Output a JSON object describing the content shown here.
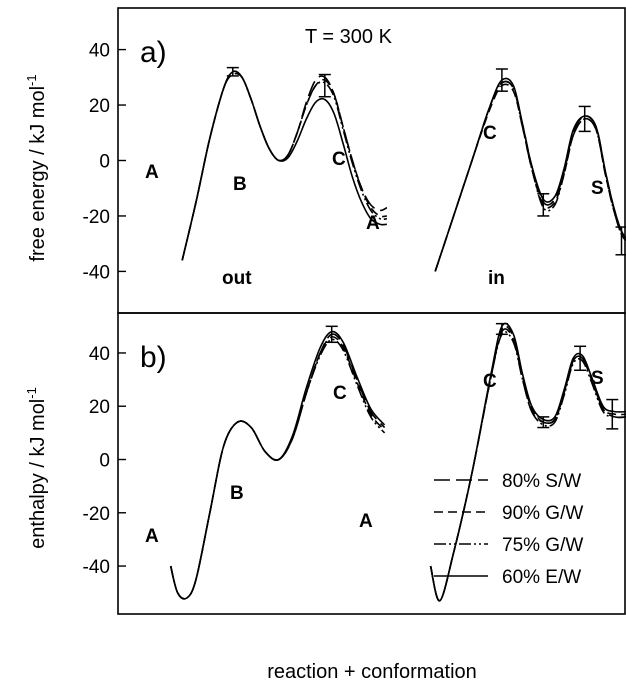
{
  "chart_data": [
    {
      "type": "line",
      "panel_label": "a)",
      "annotation": "T = 300 K",
      "ylabel": "free energy / kJ mol",
      "ylabel_sup": "-1",
      "xlabel": "reaction + conformation",
      "ylim": [
        -55,
        55
      ],
      "yticks": [
        "40",
        "20",
        "0",
        "-20",
        "-40"
      ],
      "ytick_values": [
        40,
        20,
        0,
        -20,
        -40
      ],
      "state_labels": [
        "A",
        "B",
        "C",
        "A",
        "C",
        "S"
      ],
      "group_labels": [
        "out",
        "in"
      ],
      "x_range": [
        0,
        10
      ],
      "segments": [
        {
          "name": "out",
          "series": [
            {
              "name": "80% S/W",
              "x": [
                0.7,
                1.0,
                1.3,
                1.6,
                1.8,
                2.0,
                2.2,
                2.4,
                2.6,
                2.8,
                3.0,
                3.2,
                3.4,
                3.6,
                3.8,
                4.0,
                4.2,
                4.4,
                4.6,
                4.8,
                5.0,
                5.15
              ],
              "values": [
                -36,
                -15,
                8,
                26,
                32,
                30,
                22,
                12,
                4,
                0,
                2,
                10,
                21,
                29,
                30,
                24,
                12,
                0,
                -10,
                -16,
                -18,
                -17
              ]
            },
            {
              "name": "90% G/W",
              "x": [
                0.7,
                1.0,
                1.3,
                1.6,
                1.8,
                2.0,
                2.2,
                2.4,
                2.6,
                2.8,
                3.0,
                3.2,
                3.4,
                3.6,
                3.8,
                4.0,
                4.2,
                4.4,
                4.6,
                4.8,
                5.0,
                5.15
              ],
              "values": [
                -36,
                -15,
                8,
                26,
                31,
                30,
                22,
                12,
                4,
                0,
                2,
                10,
                20,
                27,
                29,
                24,
                12,
                0,
                -10,
                -17,
                -20,
                -20
              ]
            },
            {
              "name": "75% G/W",
              "x": [
                0.7,
                1.0,
                1.3,
                1.6,
                1.8,
                2.0,
                2.2,
                2.4,
                2.6,
                2.8,
                3.0,
                3.2,
                3.4,
                3.6,
                3.8,
                4.0,
                4.2,
                4.4,
                4.6,
                4.8,
                5.0,
                5.15
              ],
              "values": [
                -36,
                -15,
                8,
                26,
                32,
                30,
                22,
                12,
                4,
                0,
                2,
                10,
                20,
                27,
                28,
                23,
                11,
                -1,
                -11,
                -18,
                -21,
                -21
              ]
            },
            {
              "name": "60% E/W",
              "x": [
                0.7,
                1.0,
                1.3,
                1.6,
                1.8,
                2.0,
                2.2,
                2.4,
                2.6,
                2.8,
                3.0,
                3.2,
                3.4,
                3.6,
                3.8,
                4.0,
                4.2,
                4.4,
                4.6,
                4.8,
                5.0,
                5.15
              ],
              "values": [
                -36,
                -15,
                8,
                26,
                32,
                30,
                22,
                12,
                4,
                0,
                1,
                7,
                15,
                21,
                22,
                17,
                6,
                -6,
                -15,
                -21,
                -23,
                -23
              ]
            }
          ]
        },
        {
          "name": "in",
          "series": [
            {
              "name": "80% S/W",
              "x": [
                6.2,
                6.6,
                7.0,
                7.4,
                7.65,
                7.9,
                8.1,
                8.3,
                8.55,
                8.8,
                9.0,
                9.2,
                9.45,
                9.7,
                9.9,
                10.1,
                10.3,
                10.6
              ],
              "values": [
                -40,
                -20,
                0,
                20,
                28,
                26,
                13,
                -2,
                -15,
                -14,
                -4,
                10,
                16,
                12,
                -4,
                -18,
                -27,
                -30
              ]
            },
            {
              "name": "90% G/W",
              "x": [
                6.2,
                6.6,
                7.0,
                7.4,
                7.65,
                7.9,
                8.1,
                8.3,
                8.55,
                8.8,
                9.0,
                9.2,
                9.45,
                9.7,
                9.9,
                10.1,
                10.3,
                10.6
              ],
              "values": [
                -40,
                -20,
                0,
                19,
                27,
                25,
                12,
                -3,
                -16,
                -15,
                -5,
                9,
                15,
                11,
                -5,
                -19,
                -28,
                -30
              ]
            },
            {
              "name": "75% G/W",
              "x": [
                6.2,
                6.6,
                7.0,
                7.4,
                7.65,
                7.9,
                8.1,
                8.3,
                8.55,
                8.8,
                9.0,
                9.2,
                9.45,
                9.7,
                9.9,
                10.1,
                10.3,
                10.6
              ],
              "values": [
                -40,
                -20,
                0,
                20,
                28,
                26,
                12,
                -3,
                -17,
                -16,
                -5,
                9,
                15,
                11,
                -5,
                -19,
                -28,
                -30
              ]
            },
            {
              "name": "60% E/W",
              "x": [
                6.2,
                6.6,
                7.0,
                7.4,
                7.65,
                7.9,
                8.1,
                8.3,
                8.55,
                8.8,
                9.0,
                9.2,
                9.45,
                9.7,
                9.9,
                10.1,
                10.3,
                10.6
              ],
              "values": [
                -40,
                -20,
                0,
                20,
                29,
                27,
                13,
                -2,
                -14,
                -13,
                -3,
                11,
                16,
                12,
                -4,
                -18,
                -27,
                -30
              ]
            }
          ]
        }
      ],
      "error_bars": [
        {
          "x": 1.8,
          "y": 32,
          "err": 1.5
        },
        {
          "x": 3.8,
          "y": 27,
          "err": 4
        },
        {
          "x": 7.65,
          "y": 29,
          "err": 4
        },
        {
          "x": 8.55,
          "y": -16,
          "err": 4
        },
        {
          "x": 9.45,
          "y": 15,
          "err": 4.5
        },
        {
          "x": 10.25,
          "y": -29,
          "err": 5
        }
      ]
    },
    {
      "type": "line",
      "panel_label": "b)",
      "ylabel": "enthalpy  / kJ mol",
      "ylabel_sup": "-1",
      "ylim": [
        -58,
        55
      ],
      "yticks": [
        "40",
        "20",
        "0",
        "-20",
        "-40"
      ],
      "ytick_values": [
        40,
        20,
        0,
        -20,
        -40
      ],
      "state_labels": [
        "A",
        "B",
        "C",
        "A",
        "C",
        "S"
      ],
      "x_range": [
        0,
        10
      ],
      "legend": {
        "position": "bottom-right",
        "entries": [
          "80% S/W",
          "90% G/W",
          "75% G/W",
          "60% E/W"
        ]
      },
      "segments": [
        {
          "name": "out",
          "series": [
            {
              "name": "80% S/W",
              "x": [
                0.45,
                0.6,
                0.8,
                1.0,
                1.3,
                1.6,
                1.9,
                2.2,
                2.5,
                2.8,
                3.1,
                3.4,
                3.7,
                3.95,
                4.2,
                4.5,
                4.8,
                5.1
              ],
              "values": [
                -40,
                -50,
                -52,
                -45,
                -20,
                5,
                14,
                12,
                3,
                0,
                8,
                25,
                40,
                47,
                43,
                30,
                18,
                12
              ]
            },
            {
              "name": "90% G/W",
              "x": [
                0.45,
                0.6,
                0.8,
                1.0,
                1.3,
                1.6,
                1.9,
                2.2,
                2.5,
                2.8,
                3.1,
                3.4,
                3.7,
                3.95,
                4.2,
                4.5,
                4.8,
                5.1
              ],
              "values": [
                -40,
                -50,
                -52,
                -45,
                -20,
                5,
                14,
                12,
                3,
                0,
                8,
                25,
                40,
                46,
                42,
                29,
                17,
                11
              ]
            },
            {
              "name": "75% G/W",
              "x": [
                0.45,
                0.6,
                0.8,
                1.0,
                1.3,
                1.6,
                1.9,
                2.2,
                2.5,
                2.8,
                3.1,
                3.4,
                3.7,
                3.95,
                4.2,
                4.5,
                4.8,
                5.1
              ],
              "values": [
                -40,
                -50,
                -52,
                -45,
                -20,
                5,
                14,
                12,
                3,
                0,
                8,
                25,
                39,
                45,
                41,
                28,
                16,
                10
              ]
            },
            {
              "name": "60% E/W",
              "x": [
                0.45,
                0.6,
                0.8,
                1.0,
                1.3,
                1.6,
                1.9,
                2.2,
                2.5,
                2.8,
                3.1,
                3.4,
                3.7,
                3.95,
                4.2,
                4.5,
                4.8,
                5.1
              ],
              "values": [
                -40,
                -50,
                -52,
                -45,
                -20,
                5,
                14,
                12,
                3,
                0,
                9,
                27,
                42,
                48,
                44,
                31,
                19,
                13
              ]
            }
          ]
        },
        {
          "name": "in",
          "series": [
            {
              "name": "80% S/W",
              "x": [
                6.1,
                6.3,
                6.6,
                7.0,
                7.4,
                7.65,
                7.9,
                8.1,
                8.3,
                8.55,
                8.8,
                9.0,
                9.2,
                9.4,
                9.6,
                9.85,
                10.1,
                10.4,
                10.6
              ],
              "values": [
                -40,
                -53,
                -35,
                -5,
                30,
                48,
                45,
                30,
                18,
                14,
                15,
                25,
                37,
                38,
                30,
                19,
                16,
                16,
                16
              ]
            },
            {
              "name": "90% G/W",
              "x": [
                6.1,
                6.3,
                6.6,
                7.0,
                7.4,
                7.65,
                7.9,
                8.1,
                8.3,
                8.55,
                8.8,
                9.0,
                9.2,
                9.4,
                9.6,
                9.85,
                10.1,
                10.4,
                10.6
              ],
              "values": [
                -40,
                -53,
                -35,
                -5,
                30,
                49,
                46,
                31,
                19,
                14,
                15,
                25,
                37,
                38,
                30,
                19,
                17,
                17,
                17
              ]
            },
            {
              "name": "75% G/W",
              "x": [
                6.1,
                6.3,
                6.6,
                7.0,
                7.4,
                7.65,
                7.9,
                8.1,
                8.3,
                8.55,
                8.8,
                9.0,
                9.2,
                9.4,
                9.6,
                9.85,
                10.1,
                10.4,
                10.6
              ],
              "values": [
                -40,
                -53,
                -35,
                -5,
                30,
                47,
                44,
                30,
                18,
                13,
                14,
                24,
                36,
                37,
                29,
                18,
                16,
                16,
                16
              ]
            },
            {
              "name": "60% E/W",
              "x": [
                6.1,
                6.3,
                6.6,
                7.0,
                7.4,
                7.65,
                7.9,
                8.1,
                8.3,
                8.55,
                8.8,
                9.0,
                9.2,
                9.4,
                9.6,
                9.85,
                10.1,
                10.4,
                10.6
              ],
              "values": [
                -40,
                -53,
                -35,
                -5,
                31,
                50,
                47,
                32,
                20,
                15,
                16,
                26,
                38,
                39,
                31,
                20,
                18,
                18,
                18
              ]
            }
          ]
        }
      ],
      "error_bars": [
        {
          "x": 3.95,
          "y": 47,
          "err": 3
        },
        {
          "x": 7.65,
          "y": 49,
          "err": 2
        },
        {
          "x": 8.55,
          "y": 14,
          "err": 2
        },
        {
          "x": 9.35,
          "y": 38,
          "err": 4.5
        },
        {
          "x": 10.05,
          "y": 17,
          "err": 5.5
        }
      ]
    }
  ],
  "styles": {
    "line_color": "#000000",
    "dash": {
      "80% S/W": "16,6",
      "90% G/W": "9,5",
      "75% G/W": "12,3,2,3,2,3",
      "60% E/W": ""
    }
  }
}
